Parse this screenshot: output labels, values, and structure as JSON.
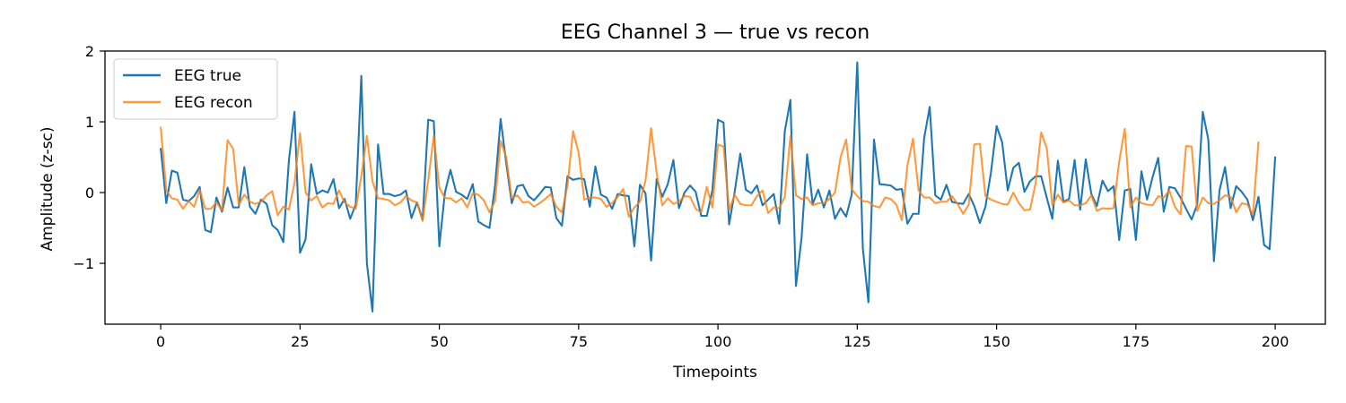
{
  "chart_data": {
    "type": "line",
    "title": "EEG Channel 3 — true vs recon",
    "xlabel": "Timepoints",
    "ylabel": "Amplitude (z-sc)",
    "xlim": [
      -10,
      209
    ],
    "ylim": [
      -1.86,
      2.0
    ],
    "xticks": [
      0,
      25,
      50,
      75,
      100,
      125,
      150,
      175,
      200
    ],
    "xtick_labels": [
      "0",
      "25",
      "50",
      "75",
      "100",
      "125",
      "150",
      "175",
      "200"
    ],
    "yticks": [
      -1,
      0,
      1,
      2
    ],
    "ytick_labels": [
      "−1",
      "0",
      "1",
      "2"
    ],
    "grid": false,
    "legend_position": "top-left",
    "series": [
      {
        "name": "EEG true",
        "color": "#1f77b4",
        "values": [
          0.63,
          -0.15,
          0.31,
          0.28,
          -0.1,
          -0.12,
          -0.05,
          0.08,
          -0.53,
          -0.56,
          -0.07,
          -0.27,
          0.07,
          -0.21,
          -0.21,
          0.36,
          -0.2,
          -0.3,
          -0.1,
          -0.16,
          -0.46,
          -0.53,
          -0.7,
          0.45,
          1.14,
          -0.85,
          -0.66,
          0.4,
          -0.02,
          0.03,
          0.0,
          0.19,
          -0.22,
          -0.09,
          -0.37,
          -0.17,
          1.65,
          -1.0,
          -1.68,
          0.68,
          -0.02,
          -0.02,
          -0.05,
          -0.03,
          0.03,
          -0.36,
          -0.14,
          -0.38,
          1.03,
          1.01,
          -0.76,
          0.0,
          0.32,
          0.01,
          -0.03,
          -0.09,
          0.12,
          -0.41,
          -0.46,
          -0.5,
          0.1,
          1.04,
          0.42,
          -0.15,
          0.09,
          0.11,
          -0.05,
          -0.11,
          -0.02,
          0.08,
          0.07,
          -0.36,
          -0.47,
          0.23,
          0.18,
          0.2,
          0.19,
          -0.2,
          0.37,
          -0.03,
          -0.07,
          -0.23,
          -0.02,
          -0.04,
          -0.05,
          -0.76,
          0.11,
          -0.01,
          -0.96,
          0.19,
          -0.06,
          0.12,
          0.46,
          -0.22,
          0.0,
          0.1,
          0.01,
          -0.33,
          -0.33,
          0.03,
          1.03,
          0.99,
          -0.45,
          0.01,
          0.55,
          0.04,
          -0.01,
          0.1,
          -0.18,
          -0.1,
          -0.02,
          -0.44,
          0.87,
          1.31,
          -1.32,
          -0.64,
          0.54,
          -0.16,
          0.04,
          -0.21,
          0.03,
          -0.37,
          -0.22,
          -0.34,
          -0.03,
          1.84,
          -0.79,
          -1.55,
          0.75,
          0.12,
          0.11,
          0.1,
          0.04,
          0.05,
          -0.44,
          -0.3,
          -0.3,
          0.77,
          1.21,
          -0.04,
          -0.1,
          0.11,
          -0.13,
          -0.15,
          -0.16,
          -0.02,
          -0.19,
          -0.43,
          -0.2,
          0.29,
          0.94,
          0.71,
          0.03,
          0.35,
          0.42,
          0.01,
          0.16,
          0.23,
          0.23,
          -0.07,
          -0.37,
          0.45,
          -0.13,
          -0.09,
          0.46,
          -0.24,
          0.47,
          -0.02,
          -0.19,
          0.17,
          0.02,
          0.09,
          -0.67,
          0.03,
          0.05,
          -0.67,
          0.3,
          -0.1,
          0.22,
          0.49,
          -0.27,
          0.08,
          0.06,
          -0.07,
          -0.23,
          -0.38,
          -0.17,
          1.14,
          0.75,
          -0.97,
          0.03,
          0.36,
          -0.22,
          0.09,
          0.01,
          -0.1,
          -0.39,
          -0.06,
          -0.74,
          -0.8,
          0.51
        ]
      },
      {
        "name": "EEG recon",
        "color": "#ff7f0e",
        "values": [
          0.93,
          0.03,
          -0.08,
          -0.1,
          -0.23,
          -0.12,
          -0.2,
          0.04,
          -0.23,
          -0.23,
          -0.14,
          -0.25,
          0.74,
          0.62,
          -0.18,
          -0.03,
          -0.13,
          -0.16,
          -0.13,
          -0.04,
          0.02,
          -0.32,
          -0.2,
          -0.24,
          0.13,
          0.84,
          0.0,
          -0.11,
          -0.05,
          -0.21,
          -0.15,
          -0.16,
          0.03,
          -0.14,
          -0.2,
          -0.23,
          0.23,
          0.8,
          0.16,
          -0.08,
          -0.09,
          -0.11,
          -0.18,
          -0.14,
          -0.05,
          -0.11,
          -0.14,
          -0.4,
          0.17,
          0.8,
          0.07,
          -0.08,
          -0.08,
          -0.14,
          -0.08,
          -0.21,
          -0.01,
          -0.03,
          -0.11,
          -0.28,
          -0.12,
          0.73,
          0.5,
          -0.08,
          -0.04,
          -0.14,
          -0.13,
          -0.2,
          -0.15,
          -0.09,
          -0.02,
          -0.2,
          -0.28,
          0.1,
          0.87,
          0.56,
          -0.1,
          -0.07,
          -0.07,
          -0.09,
          -0.2,
          -0.15,
          -0.06,
          0.05,
          -0.34,
          -0.21,
          -0.13,
          0.17,
          0.91,
          0.28,
          -0.18,
          -0.08,
          -0.16,
          -0.13,
          -0.05,
          -0.06,
          -0.23,
          -0.28,
          0.08,
          -0.21,
          0.68,
          0.65,
          -0.25,
          -0.03,
          -0.16,
          -0.18,
          -0.18,
          -0.05,
          0.03,
          -0.29,
          -0.21,
          -0.22,
          -0.06,
          0.8,
          -0.04,
          -0.09,
          -0.07,
          -0.18,
          -0.15,
          -0.15,
          -0.09,
          0.0,
          0.5,
          0.75,
          0.05,
          -0.05,
          -0.12,
          -0.13,
          -0.19,
          -0.21,
          -0.07,
          -0.09,
          -0.17,
          -0.39,
          0.38,
          0.76,
          0.03,
          -0.07,
          -0.07,
          -0.15,
          -0.13,
          -0.13,
          -0.05,
          -0.16,
          -0.3,
          -0.17,
          0.68,
          0.69,
          -0.05,
          -0.1,
          -0.13,
          -0.16,
          -0.17,
          0.0,
          -0.15,
          -0.25,
          -0.24,
          0.13,
          0.85,
          0.63,
          -0.18,
          -0.03,
          -0.14,
          -0.11,
          -0.18,
          -0.18,
          -0.15,
          -0.04,
          -0.26,
          -0.22,
          -0.23,
          -0.22,
          0.44,
          0.9,
          -0.21,
          -0.07,
          -0.15,
          -0.17,
          -0.18,
          -0.05,
          -0.07,
          0.03,
          -0.2,
          -0.31,
          0.66,
          0.65,
          -0.26,
          -0.07,
          -0.15,
          -0.16,
          -0.11,
          -0.04,
          -0.06,
          -0.28,
          -0.15,
          -0.17,
          -0.31,
          0.72
        ]
      }
    ]
  }
}
